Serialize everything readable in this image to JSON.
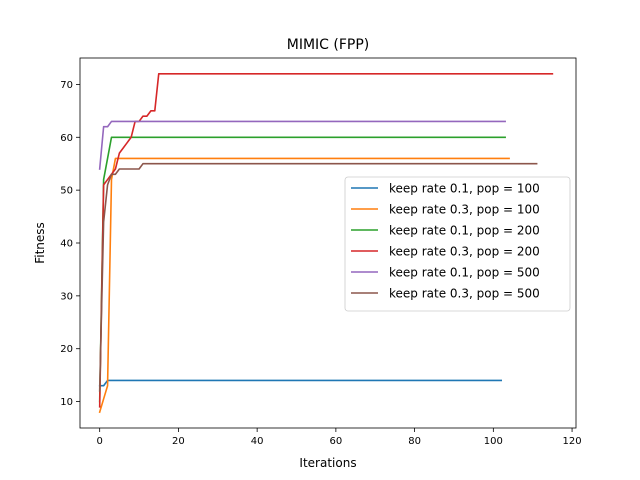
{
  "chart_data": {
    "type": "line",
    "title": "MIMIC (FPP)",
    "xlabel": "Iterations",
    "ylabel": "Fitness",
    "xlim": [
      -5,
      121
    ],
    "ylim": [
      5,
      75
    ],
    "xticks": [
      0,
      20,
      40,
      60,
      80,
      100,
      120
    ],
    "yticks": [
      10,
      20,
      30,
      40,
      50,
      60,
      70
    ],
    "grid": false,
    "legend_position": "center-right",
    "series": [
      {
        "name": "keep rate 0.1, pop = 100",
        "color": "#1f77b4",
        "points": [
          [
            0,
            13
          ],
          [
            1,
            13
          ],
          [
            2,
            14
          ],
          [
            3,
            14
          ],
          [
            102,
            14
          ]
        ]
      },
      {
        "name": "keep rate 0.3, pop = 100",
        "color": "#ff7f0e",
        "points": [
          [
            0,
            8
          ],
          [
            1,
            10.5
          ],
          [
            2,
            13
          ],
          [
            3,
            52
          ],
          [
            4,
            56
          ],
          [
            5,
            56
          ],
          [
            104,
            56
          ]
        ]
      },
      {
        "name": "keep rate 0.1, pop = 200",
        "color": "#2ca02c",
        "points": [
          [
            0,
            10
          ],
          [
            1,
            52
          ],
          [
            2,
            56
          ],
          [
            3,
            60
          ],
          [
            4,
            60
          ],
          [
            103,
            60
          ]
        ]
      },
      {
        "name": "keep rate 0.3, pop = 200",
        "color": "#d62728",
        "points": [
          [
            0,
            9
          ],
          [
            1,
            51
          ],
          [
            2,
            52
          ],
          [
            3,
            53
          ],
          [
            4,
            54
          ],
          [
            5,
            57
          ],
          [
            6,
            58
          ],
          [
            7,
            59
          ],
          [
            8,
            60
          ],
          [
            9,
            63
          ],
          [
            10,
            63
          ],
          [
            11,
            64
          ],
          [
            12,
            64
          ],
          [
            13,
            65
          ],
          [
            14,
            65
          ],
          [
            15,
            72
          ],
          [
            16,
            72
          ],
          [
            115,
            72
          ]
        ]
      },
      {
        "name": "keep rate 0.1, pop = 500",
        "color": "#9467bd",
        "points": [
          [
            0,
            54
          ],
          [
            1,
            62
          ],
          [
            2,
            62
          ],
          [
            3,
            63
          ],
          [
            4,
            63
          ],
          [
            103,
            63
          ]
        ]
      },
      {
        "name": "keep rate 0.3, pop = 500",
        "color": "#8c564b",
        "points": [
          [
            0,
            12
          ],
          [
            1,
            44
          ],
          [
            2,
            51
          ],
          [
            3,
            53
          ],
          [
            4,
            53
          ],
          [
            5,
            54
          ],
          [
            6,
            54
          ],
          [
            7,
            54
          ],
          [
            8,
            54
          ],
          [
            9,
            54
          ],
          [
            10,
            54
          ],
          [
            11,
            55
          ],
          [
            12,
            55
          ],
          [
            111,
            55
          ]
        ]
      }
    ]
  }
}
